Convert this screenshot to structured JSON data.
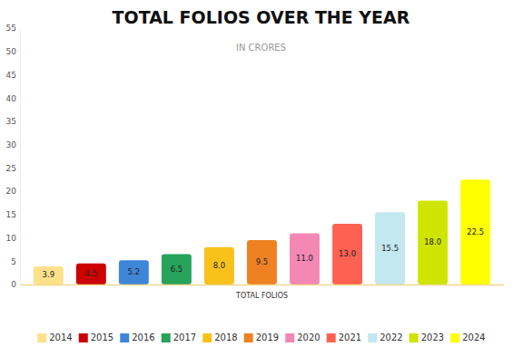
{
  "chart_data": {
    "type": "bar",
    "title": "TOTAL FOLIOS OVER THE YEAR",
    "subtitle": "IN CRORES",
    "categories": [
      "TOTAL FOLIOS"
    ],
    "series": [
      {
        "name": "2014",
        "color": "#fde28a",
        "values": [
          3.9
        ]
      },
      {
        "name": "2015",
        "color": "#cc0000",
        "values": [
          4.5
        ]
      },
      {
        "name": "2016",
        "color": "#3f86d8",
        "values": [
          5.2
        ]
      },
      {
        "name": "2017",
        "color": "#27a35a",
        "values": [
          6.5
        ]
      },
      {
        "name": "2018",
        "color": "#f8c21b",
        "values": [
          8
        ],
        "value_labels": [
          "8.0"
        ]
      },
      {
        "name": "2019",
        "color": "#ee8222",
        "values": [
          9.5
        ]
      },
      {
        "name": "2020",
        "color": "#f388b4",
        "values": [
          11
        ],
        "value_labels": [
          "11.0"
        ]
      },
      {
        "name": "2021",
        "color": "#fc6151",
        "values": [
          13
        ],
        "value_labels": [
          "13.0"
        ]
      },
      {
        "name": "2022",
        "color": "#c2e8f0",
        "values": [
          15.5
        ]
      },
      {
        "name": "2023",
        "color": "#cfe400",
        "values": [
          18
        ],
        "value_labels": [
          "18.0"
        ]
      },
      {
        "name": "2024",
        "color": "#ffff00",
        "values": [
          22.5
        ]
      }
    ],
    "ylim": [
      0,
      55
    ],
    "yticks": [
      0,
      5,
      10,
      15,
      20,
      25,
      30,
      35,
      40,
      45,
      50,
      55
    ],
    "grid": false,
    "data_labels": true,
    "legend": "bottom"
  }
}
